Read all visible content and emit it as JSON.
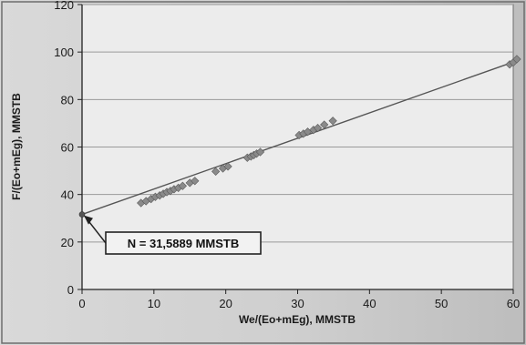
{
  "colors": {
    "plot_background": "#ececec",
    "gridline": "#9a9a9a",
    "fit_line": "#555555",
    "marker": "#8a8a8a",
    "frame": "#6d6d6d"
  },
  "chart_data": {
    "type": "scatter",
    "title": "",
    "xlabel": "We/(Eo+mEg), MMSTB",
    "ylabel": "F/(Eo+mEg), MMSTB",
    "xlim": [
      0,
      60
    ],
    "ylim": [
      0,
      120
    ],
    "x_ticks": [
      0,
      10,
      20,
      30,
      40,
      50,
      60
    ],
    "y_ticks": [
      0,
      20,
      40,
      60,
      80,
      100,
      120
    ],
    "grid": "horizontal",
    "marker": "diamond",
    "series": [
      {
        "points": [
          [
            8.2,
            36.4
          ],
          [
            8.9,
            37.2
          ],
          [
            9.6,
            38.1
          ],
          [
            10.2,
            39.0
          ],
          [
            10.8,
            39.6
          ],
          [
            11.3,
            40.3
          ],
          [
            11.8,
            41.0
          ],
          [
            12.3,
            41.5
          ],
          [
            12.8,
            42.2
          ],
          [
            13.4,
            42.8
          ],
          [
            14.0,
            43.6
          ],
          [
            15.0,
            44.9
          ],
          [
            15.7,
            45.7
          ],
          [
            18.6,
            49.7
          ],
          [
            19.6,
            51.0
          ],
          [
            20.3,
            51.8
          ],
          [
            23.0,
            55.5
          ],
          [
            23.5,
            56.0
          ],
          [
            23.9,
            56.6
          ],
          [
            24.3,
            57.2
          ],
          [
            24.8,
            57.9
          ],
          [
            30.2,
            65.0
          ],
          [
            30.8,
            65.6
          ],
          [
            31.4,
            66.4
          ],
          [
            32.2,
            67.2
          ],
          [
            32.8,
            68.0
          ],
          [
            33.7,
            69.4
          ],
          [
            34.9,
            71.0
          ],
          [
            59.5,
            94.8
          ],
          [
            60.0,
            95.6
          ],
          [
            60.5,
            97.0
          ]
        ]
      }
    ],
    "fit_line": {
      "x": [
        0,
        60.5
      ],
      "y": [
        31.6,
        96.3
      ]
    },
    "annotation": {
      "text": "N = 31,5889 MMSTB",
      "target": [
        0,
        31.6
      ]
    }
  }
}
